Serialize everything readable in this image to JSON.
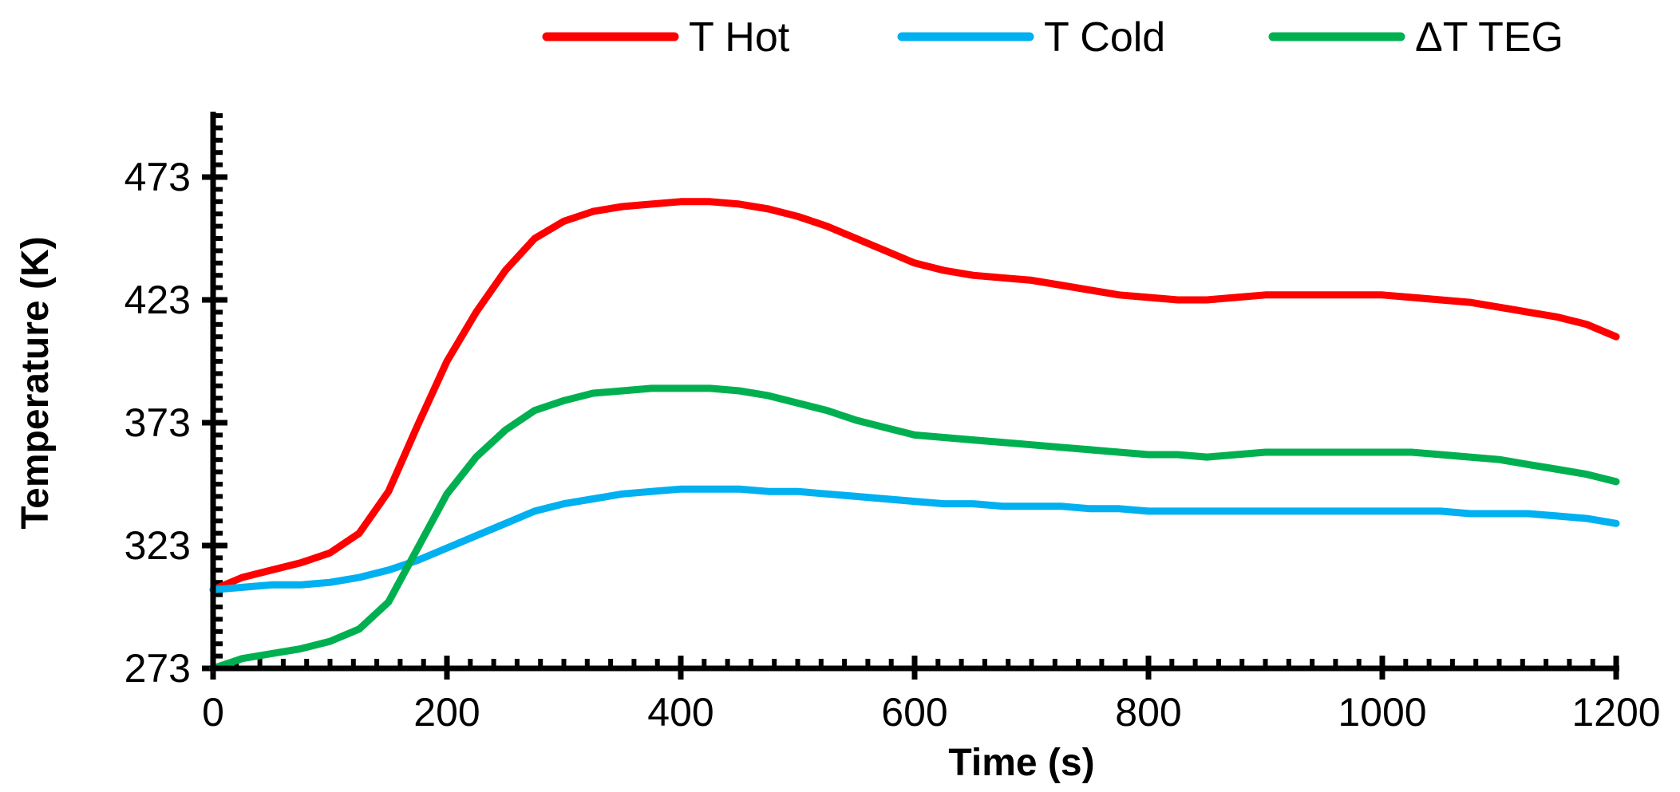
{
  "chart_data": {
    "type": "line",
    "title": "",
    "xlabel": "Time (s)",
    "ylabel": "Temperature (K)",
    "xlim": [
      0,
      1200
    ],
    "ylim": [
      273,
      498
    ],
    "x_ticks": [
      0,
      200,
      400,
      600,
      800,
      1000,
      1200
    ],
    "x_tick_labels": [
      "0",
      "200",
      "400",
      "600",
      "800",
      "1000",
      "1200"
    ],
    "y_ticks": [
      273,
      323,
      373,
      423,
      473
    ],
    "y_tick_labels": [
      "273",
      "323",
      "373",
      "423",
      "473"
    ],
    "grid": false,
    "legend_position": "top",
    "series": [
      {
        "name": "T Hot",
        "color": "#ff0000",
        "x": [
          0,
          25,
          50,
          75,
          100,
          125,
          150,
          175,
          200,
          225,
          250,
          275,
          300,
          325,
          350,
          375,
          400,
          425,
          450,
          475,
          500,
          525,
          550,
          575,
          600,
          625,
          650,
          675,
          700,
          725,
          750,
          775,
          800,
          825,
          850,
          875,
          900,
          925,
          950,
          975,
          1000,
          1025,
          1050,
          1075,
          1100,
          1125,
          1150,
          1175,
          1200
        ],
        "values": [
          305,
          310,
          313,
          316,
          320,
          328,
          345,
          372,
          398,
          418,
          435,
          448,
          455,
          459,
          461,
          462,
          463,
          463,
          462,
          460,
          457,
          453,
          448,
          443,
          438,
          435,
          433,
          432,
          431,
          429,
          427,
          425,
          424,
          423,
          423,
          424,
          425,
          425,
          425,
          425,
          425,
          424,
          423,
          422,
          420,
          418,
          416,
          413,
          408
        ]
      },
      {
        "name": "T Cold",
        "color": "#00b0f0",
        "x": [
          0,
          25,
          50,
          75,
          100,
          125,
          150,
          175,
          200,
          225,
          250,
          275,
          300,
          325,
          350,
          375,
          400,
          425,
          450,
          475,
          500,
          525,
          550,
          575,
          600,
          625,
          650,
          675,
          700,
          725,
          750,
          775,
          800,
          825,
          850,
          875,
          900,
          925,
          950,
          975,
          1000,
          1025,
          1050,
          1075,
          1100,
          1125,
          1150,
          1175,
          1200
        ],
        "values": [
          305,
          306,
          307,
          307,
          308,
          310,
          313,
          317,
          322,
          327,
          332,
          337,
          340,
          342,
          344,
          345,
          346,
          346,
          346,
          345,
          345,
          344,
          343,
          342,
          341,
          340,
          340,
          339,
          339,
          339,
          338,
          338,
          337,
          337,
          337,
          337,
          337,
          337,
          337,
          337,
          337,
          337,
          337,
          336,
          336,
          336,
          335,
          334,
          332
        ]
      },
      {
        "name": "ΔT TEG",
        "color": "#00b050",
        "x": [
          0,
          25,
          50,
          75,
          100,
          125,
          150,
          175,
          200,
          225,
          250,
          275,
          300,
          325,
          350,
          375,
          400,
          425,
          450,
          475,
          500,
          525,
          550,
          575,
          600,
          625,
          650,
          675,
          700,
          725,
          750,
          775,
          800,
          825,
          850,
          875,
          900,
          925,
          950,
          975,
          1000,
          1025,
          1050,
          1075,
          1100,
          1125,
          1150,
          1175,
          1200
        ],
        "values": [
          273,
          277,
          279,
          281,
          284,
          289,
          300,
          322,
          344,
          359,
          370,
          378,
          382,
          385,
          386,
          387,
          387,
          387,
          386,
          384,
          381,
          378,
          374,
          371,
          368,
          367,
          366,
          365,
          364,
          363,
          362,
          361,
          360,
          360,
          359,
          360,
          361,
          361,
          361,
          361,
          361,
          361,
          360,
          359,
          358,
          356,
          354,
          352,
          349
        ]
      }
    ]
  }
}
